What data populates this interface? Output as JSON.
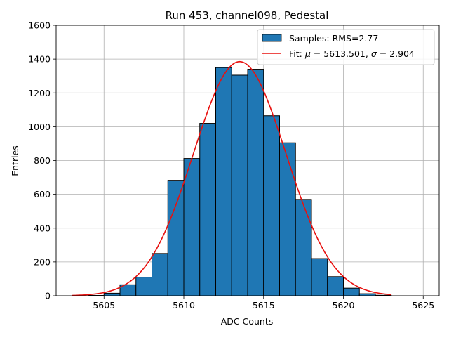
{
  "chart_data": {
    "type": "bar",
    "title": "Run 453, channel098, Pedestal",
    "xlabel": "ADC Counts",
    "ylabel": "Entries",
    "xlim": [
      5602,
      5626
    ],
    "ylim": [
      0,
      1600
    ],
    "xticks": [
      5605,
      5610,
      5615,
      5620,
      5625
    ],
    "yticks": [
      0,
      200,
      400,
      600,
      800,
      1000,
      1200,
      1400,
      1600
    ],
    "grid": true,
    "legend_position": "top-right",
    "histogram": {
      "name": "Samples: RMS=2.77",
      "color": "#1f77b4",
      "edge_color": "#000000",
      "bins": [
        {
          "x0": 5603,
          "x1": 5604,
          "count": 0
        },
        {
          "x0": 5604,
          "x1": 5605,
          "count": 2
        },
        {
          "x0": 5605,
          "x1": 5606,
          "count": 15
        },
        {
          "x0": 5606,
          "x1": 5607,
          "count": 65
        },
        {
          "x0": 5607,
          "x1": 5608,
          "count": 110
        },
        {
          "x0": 5608,
          "x1": 5609,
          "count": 250
        },
        {
          "x0": 5609,
          "x1": 5610,
          "count": 683
        },
        {
          "x0": 5610,
          "x1": 5611,
          "count": 812
        },
        {
          "x0": 5611,
          "x1": 5612,
          "count": 1020
        },
        {
          "x0": 5612,
          "x1": 5613,
          "count": 1350
        },
        {
          "x0": 5613,
          "x1": 5614,
          "count": 1305
        },
        {
          "x0": 5614,
          "x1": 5615,
          "count": 1340
        },
        {
          "x0": 5615,
          "x1": 5616,
          "count": 1065
        },
        {
          "x0": 5616,
          "x1": 5617,
          "count": 905
        },
        {
          "x0": 5617,
          "x1": 5618,
          "count": 570
        },
        {
          "x0": 5618,
          "x1": 5619,
          "count": 220
        },
        {
          "x0": 5619,
          "x1": 5620,
          "count": 113
        },
        {
          "x0": 5620,
          "x1": 5621,
          "count": 45
        },
        {
          "x0": 5621,
          "x1": 5622,
          "count": 12
        },
        {
          "x0": 5622,
          "x1": 5623,
          "count": 3
        }
      ]
    },
    "fit": {
      "name_prefix": "Fit: ",
      "mu_symbol": "μ",
      "mu_text": " = 5613.501, ",
      "sigma_symbol": "σ",
      "sigma_text": " = 2.904",
      "color": "#e8100e",
      "mu": 5613.501,
      "sigma": 2.904,
      "amplitude": 1385,
      "x_range": [
        5603,
        5623
      ]
    }
  }
}
